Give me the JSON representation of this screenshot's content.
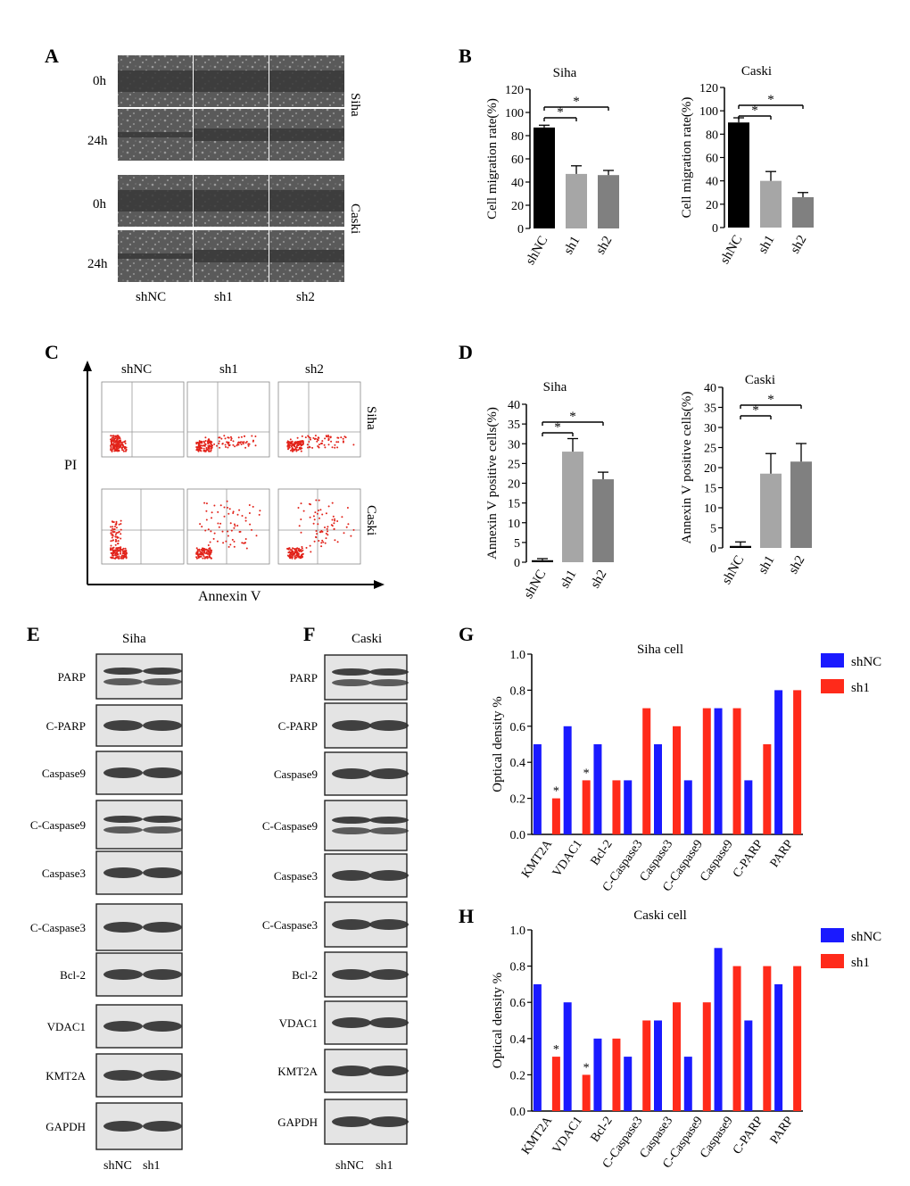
{
  "panel_letters": [
    "A",
    "B",
    "C",
    "D",
    "E",
    "F",
    "G",
    "H"
  ],
  "panel_a": {
    "time_labels": [
      "0h",
      "24h",
      "0h",
      "24h"
    ],
    "columns": [
      "shNC",
      "sh1",
      "sh2"
    ],
    "cell_lines": [
      "Siha",
      "Caski"
    ]
  },
  "panel_c": {
    "columns": [
      "shNC",
      "sh1",
      "sh2"
    ],
    "rows": [
      "Siha",
      "Caski"
    ],
    "y_axis": "PI",
    "x_axis": "Annexin V"
  },
  "panel_e": {
    "title": "Siha",
    "bands": [
      "PARP",
      "C-PARP",
      "Caspase9",
      "C-Caspase9",
      "Caspase3",
      "C-Caspase3",
      "Bcl-2",
      "VDAC1",
      "KMT2A",
      "GAPDH"
    ],
    "lanes": [
      "shNC",
      "sh1"
    ]
  },
  "panel_f": {
    "title": "Caski",
    "bands": [
      "PARP",
      "C-PARP",
      "Caspase9",
      "C-Caspase9",
      "Caspase3",
      "C-Caspase3",
      "Bcl-2",
      "VDAC1",
      "KMT2A",
      "GAPDH"
    ],
    "lanes": [
      "shNC",
      "sh1"
    ]
  },
  "chart_data": [
    {
      "id": "B-Siha",
      "type": "bar",
      "title": "Siha",
      "ylabel": "Cell migration rate(%)",
      "categories": [
        "shNC",
        "sh1",
        "sh2"
      ],
      "values": [
        87,
        47,
        46
      ],
      "errors": [
        2,
        7,
        4
      ],
      "ylim": [
        0,
        120
      ],
      "yticks": [
        0,
        20,
        40,
        60,
        80,
        100,
        120
      ],
      "sig": [
        [
          "shNC",
          "sh1"
        ],
        [
          "shNC",
          "sh2"
        ]
      ],
      "sig_mark": "*",
      "colors": [
        "#000000",
        "#a6a6a6",
        "#808080"
      ]
    },
    {
      "id": "B-Caski",
      "type": "bar",
      "title": "Caski",
      "ylabel": "Cell migration rate(%)",
      "categories": [
        "shNC",
        "sh1",
        "sh2"
      ],
      "values": [
        90,
        40,
        26
      ],
      "errors": [
        4,
        8,
        4
      ],
      "ylim": [
        0,
        120
      ],
      "yticks": [
        0,
        20,
        40,
        60,
        80,
        100,
        120
      ],
      "sig": [
        [
          "shNC",
          "sh1"
        ],
        [
          "shNC",
          "sh2"
        ]
      ],
      "sig_mark": "*",
      "colors": [
        "#000000",
        "#a6a6a6",
        "#808080"
      ]
    },
    {
      "id": "D-Siha",
      "type": "bar",
      "title": "Siha",
      "ylabel": "Annexin V positive cells(%)",
      "categories": [
        "shNC",
        "sh1",
        "sh2"
      ],
      "values": [
        0.5,
        28,
        21
      ],
      "errors": [
        0.4,
        3.3,
        1.8
      ],
      "ylim": [
        0,
        40
      ],
      "yticks": [
        0,
        5,
        10,
        15,
        20,
        25,
        30,
        35,
        40
      ],
      "sig": [
        [
          "shNC",
          "sh1"
        ],
        [
          "shNC",
          "sh2"
        ]
      ],
      "sig_mark": "*",
      "colors": [
        "#000000",
        "#a6a6a6",
        "#808080"
      ]
    },
    {
      "id": "D-Caski",
      "type": "bar",
      "title": "Caski",
      "ylabel": "Annexin V positive cells(%)",
      "categories": [
        "shNC",
        "sh1",
        "sh2"
      ],
      "values": [
        0.5,
        18.5,
        21.5
      ],
      "errors": [
        1,
        5,
        4.5
      ],
      "ylim": [
        0,
        40
      ],
      "yticks": [
        0,
        5,
        10,
        15,
        20,
        25,
        30,
        35,
        40
      ],
      "sig": [
        [
          "shNC",
          "sh1"
        ],
        [
          "shNC",
          "sh2"
        ]
      ],
      "sig_mark": "*",
      "colors": [
        "#000000",
        "#a6a6a6",
        "#808080"
      ]
    },
    {
      "id": "G",
      "type": "bar",
      "title": "Siha cell",
      "ylabel": "Optical density %",
      "categories": [
        "KMT2A",
        "VDAC1",
        "Bcl-2",
        "C-Caspase3",
        "Caspase3",
        "C-Caspase9",
        "Caspase9",
        "C-PARP",
        "PARP"
      ],
      "series": [
        {
          "name": "shNC",
          "values": [
            0.5,
            0.6,
            0.5,
            0.3,
            0.5,
            0.3,
            0.7,
            0.3,
            0.8
          ],
          "color": "#1a1aff"
        },
        {
          "name": "sh1",
          "values": [
            0.2,
            0.3,
            0.3,
            0.7,
            0.6,
            0.7,
            0.7,
            0.5,
            0.8
          ],
          "color": "#ff2a1a"
        }
      ],
      "ylim": [
        0,
        1.0
      ],
      "yticks": [
        "0.0",
        "0.2",
        "0.4",
        "0.6",
        "0.8",
        "1.0"
      ],
      "stars": [
        "KMT2A",
        "VDAC1"
      ],
      "sig_mark": "*"
    },
    {
      "id": "H",
      "type": "bar",
      "title": "Caski cell",
      "ylabel": "Optical density %",
      "categories": [
        "KMT2A",
        "VDAC1",
        "Bcl-2",
        "C-Caspase3",
        "Caspase3",
        "C-Caspase9",
        "Caspase9",
        "C-PARP",
        "PARP"
      ],
      "series": [
        {
          "name": "shNC",
          "values": [
            0.7,
            0.6,
            0.4,
            0.3,
            0.5,
            0.3,
            0.9,
            0.5,
            0.7
          ],
          "color": "#1a1aff"
        },
        {
          "name": "sh1",
          "values": [
            0.3,
            0.2,
            0.4,
            0.5,
            0.6,
            0.6,
            0.8,
            0.8,
            0.8
          ],
          "color": "#ff2a1a"
        }
      ],
      "ylim": [
        0,
        1.0
      ],
      "yticks": [
        "0.0",
        "0.2",
        "0.4",
        "0.6",
        "0.8",
        "1.0"
      ],
      "stars": [
        "KMT2A",
        "VDAC1"
      ],
      "sig_mark": "*"
    }
  ]
}
